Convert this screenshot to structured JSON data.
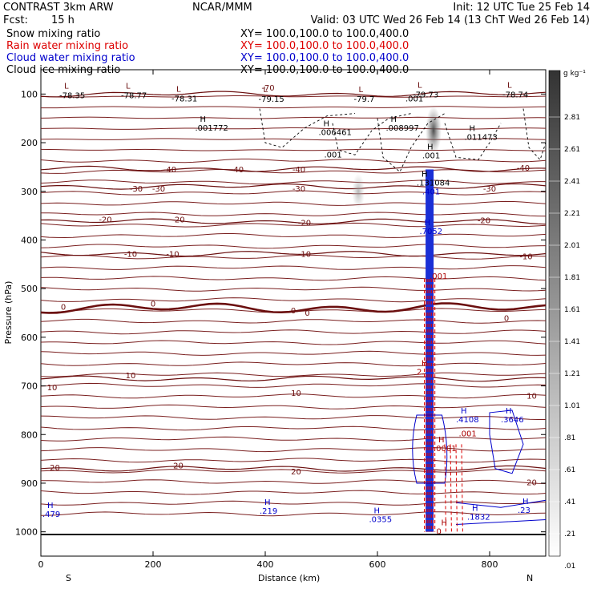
{
  "header": {
    "title": "CONTRAST  3km ARW",
    "center": "NCAR/MMM",
    "init": "Init: 12 UTC Tue 25 Feb 14",
    "fcst_label": "Fcst:",
    "fcst_value": "15 h",
    "valid": "Valid: 03 UTC Wed 26 Feb 14 (13 ChT Wed 26 Feb 14)",
    "fields": [
      {
        "name": "Snow mixing ratio",
        "xy": "XY=  100.0,100.0 to 100.0,400.0",
        "color": "#000000"
      },
      {
        "name": "Rain water mixing ratio",
        "xy": "XY=  100.0,100.0 to 100.0,400.0",
        "color": "#dd0000"
      },
      {
        "name": "Cloud water mixing ratio",
        "xy": "XY=  100.0,100.0 to 100.0,400.0",
        "color": "#0000cc"
      },
      {
        "name": "Cloud ice mixing ratio",
        "xy": "XY=  100.0,100.0 to 100.0,400.0",
        "color": "#000000"
      }
    ]
  },
  "chart_data": {
    "type": "cross-section",
    "xlabel": "Distance (km)",
    "ylabel": "Pressure (hPa)",
    "xlim": [
      0,
      900
    ],
    "ylim": [
      1050,
      50
    ],
    "x_ticks": [
      0,
      200,
      400,
      600,
      800
    ],
    "y_ticks": [
      100,
      200,
      300,
      400,
      500,
      600,
      700,
      800,
      900,
      1000
    ],
    "end_labels": {
      "left": "S",
      "right": "N"
    },
    "colorbar": {
      "unit": "g kg⁻¹",
      "labels": [
        "2.81",
        "2.61",
        "2.41",
        "2.21",
        "2.01",
        "1.81",
        "1.61",
        "1.41",
        "1.21",
        "1.01",
        ".81",
        ".61",
        ".41",
        ".21",
        ".01"
      ]
    },
    "temperature_isotherms": [
      {
        "value": -70,
        "p": 100
      },
      {
        "value": -40,
        "p": 254
      },
      {
        "value": -30,
        "p": 290
      },
      {
        "value": -20,
        "p": 362
      },
      {
        "value": -10,
        "p": 428
      },
      {
        "value": 0,
        "p": 540
      },
      {
        "value": 10,
        "p": 685
      },
      {
        "value": 20,
        "p": 870
      }
    ],
    "temperature_labels": [
      {
        "text": "-70",
        "x": 405,
        "p": 86
      },
      {
        "text": "-40",
        "x": 230,
        "p": 254
      },
      {
        "text": "-40",
        "x": 350,
        "p": 254
      },
      {
        "text": "-40",
        "x": 460,
        "p": 254
      },
      {
        "text": "-40",
        "x": 860,
        "p": 251
      },
      {
        "text": "-30",
        "x": 170,
        "p": 294
      },
      {
        "text": "-30",
        "x": 210,
        "p": 294
      },
      {
        "text": "-30",
        "x": 460,
        "p": 294
      },
      {
        "text": "-30",
        "x": 800,
        "p": 294
      },
      {
        "text": "-20",
        "x": 115,
        "p": 357
      },
      {
        "text": "-20",
        "x": 245,
        "p": 357
      },
      {
        "text": "-20",
        "x": 470,
        "p": 364
      },
      {
        "text": "-20",
        "x": 790,
        "p": 359
      },
      {
        "text": "-10",
        "x": 160,
        "p": 428
      },
      {
        "text": "-10",
        "x": 235,
        "p": 428
      },
      {
        "text": "-10",
        "x": 470,
        "p": 428
      },
      {
        "text": "-10",
        "x": 865,
        "p": 433
      },
      {
        "text": "0",
        "x": 40,
        "p": 537
      },
      {
        "text": "0",
        "x": 200,
        "p": 530
      },
      {
        "text": "0",
        "x": 450,
        "p": 544
      },
      {
        "text": "0",
        "x": 475,
        "p": 549
      },
      {
        "text": "0",
        "x": 830,
        "p": 560
      },
      {
        "text": "10",
        "x": 20,
        "p": 702
      },
      {
        "text": "10",
        "x": 160,
        "p": 678
      },
      {
        "text": "10",
        "x": 455,
        "p": 714
      },
      {
        "text": "10",
        "x": 875,
        "p": 720
      },
      {
        "text": "20",
        "x": 25,
        "p": 867
      },
      {
        "text": "20",
        "x": 245,
        "p": 863
      },
      {
        "text": "20",
        "x": 455,
        "p": 875
      },
      {
        "text": "20",
        "x": 875,
        "p": 898
      }
    ],
    "lows": [
      {
        "value": "-78.35",
        "x": 30,
        "p": 95
      },
      {
        "value": "-78.77",
        "x": 140,
        "p": 95
      },
      {
        "value": "-78.31",
        "x": 230,
        "p": 102
      },
      {
        "value": "-79.15",
        "x": 385,
        "p": 103
      },
      {
        "value": "-79.7",
        "x": 555,
        "p": 103
      },
      {
        "value": "-79.73",
        "x": 660,
        "p": 94
      },
      {
        "value": "-78.74",
        "x": 820,
        "p": 94
      }
    ],
    "snow_highs": [
      {
        "value": ".001772",
        "x": 275,
        "p": 170
      },
      {
        "value": ".006461",
        "x": 495,
        "p": 179
      },
      {
        "value": ".008997",
        "x": 615,
        "p": 170
      },
      {
        "value": ".011473",
        "x": 755,
        "p": 189
      },
      {
        "value": ".001",
        "x": 680,
        "p": 227
      }
    ],
    "ice_highs": [
      {
        "value": ".131084",
        "x": 670,
        "p": 283
      }
    ],
    "cloud_water_highs": [
      {
        "value": ".7052",
        "x": 675,
        "p": 383
      },
      {
        "value": ".4108",
        "x": 740,
        "p": 770
      },
      {
        "value": ".3646",
        "x": 820,
        "p": 770
      },
      {
        "value": ".219",
        "x": 390,
        "p": 958
      },
      {
        "value": ".0355",
        "x": 585,
        "p": 975
      },
      {
        "value": ".1832",
        "x": 760,
        "p": 970
      },
      {
        "value": ".23",
        "x": 850,
        "p": 956
      },
      {
        "value": ".479",
        "x": 0,
        "p": 964
      }
    ],
    "rain_highs": [
      {
        "value": "2.",
        "x": 670,
        "p": 672
      },
      {
        "value": ".0001",
        "x": 700,
        "p": 829
      },
      {
        "value": "0",
        "x": 705,
        "p": 1000
      }
    ],
    "contour_labels": [
      {
        "text": ".001",
        "x": 505,
        "p": 230,
        "color": "#000000"
      },
      {
        "text": ".001",
        "x": 650,
        "p": 115,
        "color": "#000000"
      },
      {
        "text": ".401",
        "x": 680,
        "p": 306,
        "color": "#0000cc"
      },
      {
        "text": ".001",
        "x": 693,
        "p": 480,
        "color": "#aa0000"
      },
      {
        "text": ".001",
        "x": 745,
        "p": 804,
        "color": "#aa0000"
      }
    ]
  }
}
